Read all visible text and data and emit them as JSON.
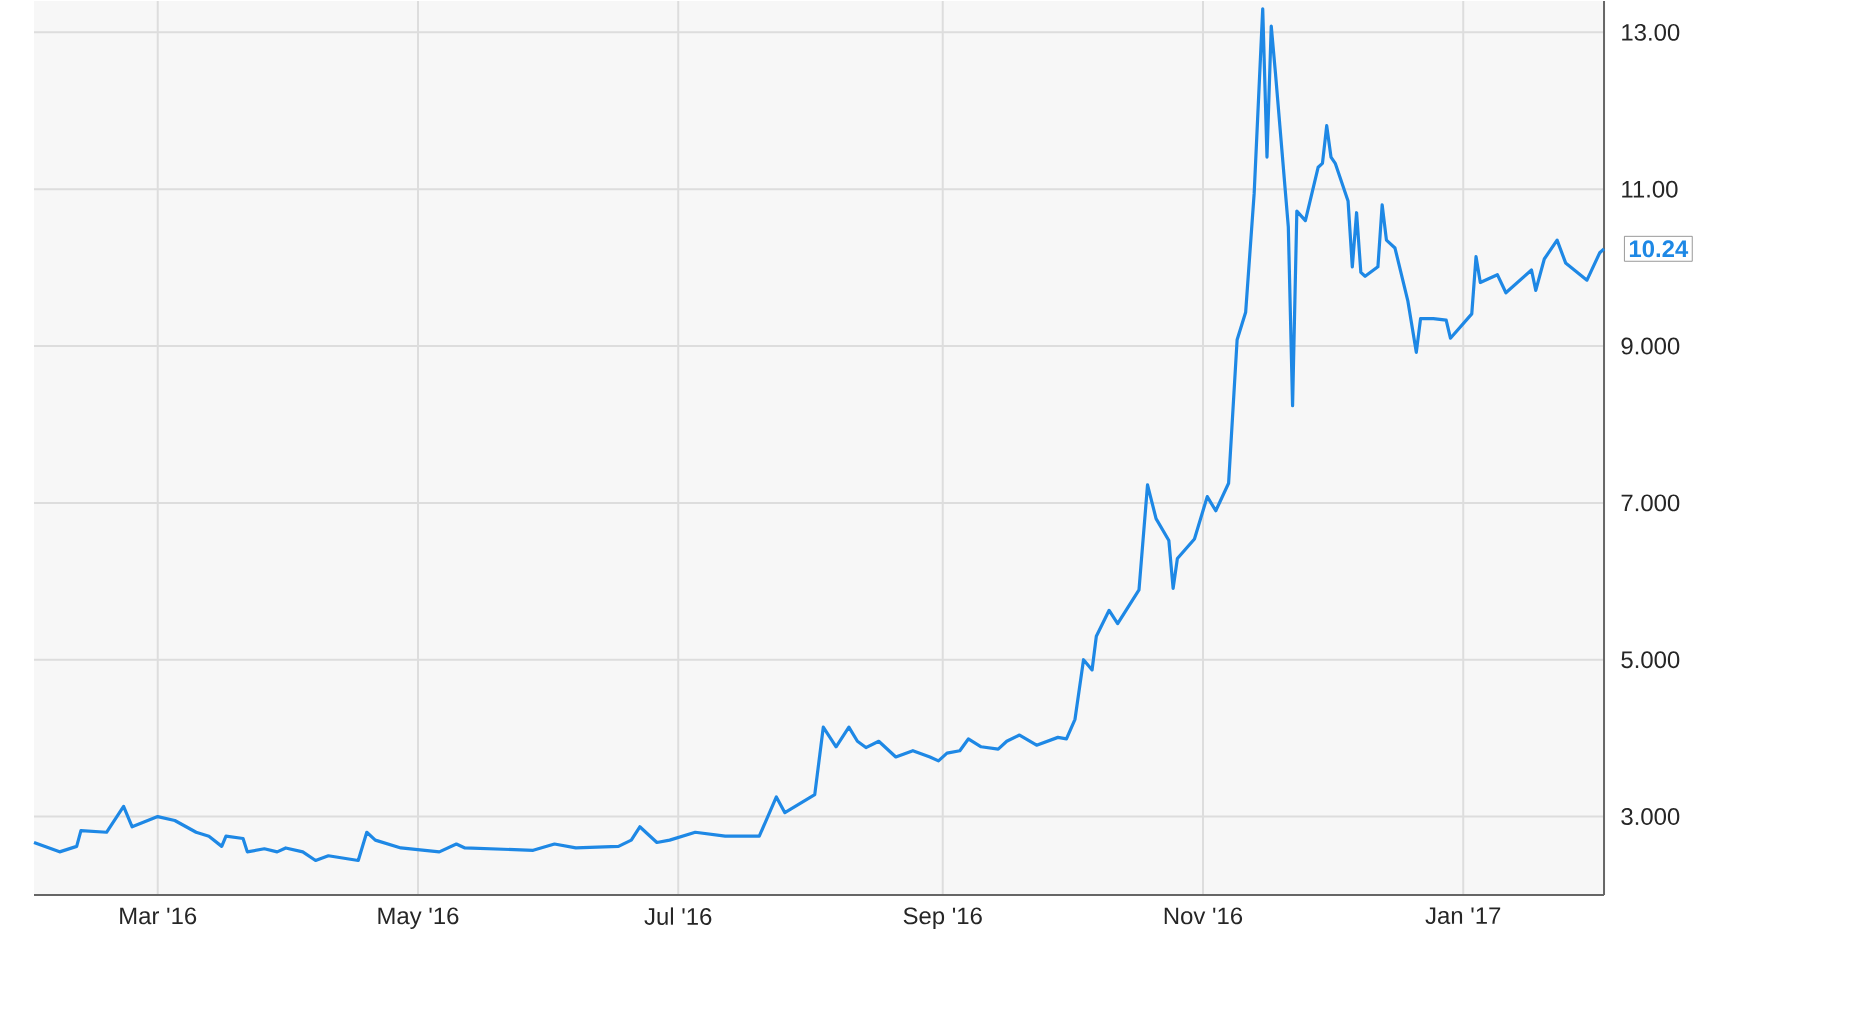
{
  "chart_data": {
    "type": "line",
    "x": [
      "2016-02-01",
      "2016-02-07",
      "2016-02-11",
      "2016-02-12",
      "2016-02-18",
      "2016-02-22",
      "2016-02-24",
      "2016-03-01",
      "2016-03-05",
      "2016-03-10",
      "2016-03-13",
      "2016-03-16",
      "2016-03-17",
      "2016-03-21",
      "2016-03-22",
      "2016-03-26",
      "2016-03-29",
      "2016-03-31",
      "2016-04-04",
      "2016-04-07",
      "2016-04-10",
      "2016-04-17",
      "2016-04-19",
      "2016-04-21",
      "2016-04-27",
      "2016-05-06",
      "2016-05-10",
      "2016-05-12",
      "2016-05-28",
      "2016-06-02",
      "2016-06-07",
      "2016-06-17",
      "2016-06-20",
      "2016-06-22",
      "2016-06-26",
      "2016-06-29",
      "2016-07-05",
      "2016-07-12",
      "2016-07-20",
      "2016-07-24",
      "2016-07-26",
      "2016-08-02",
      "2016-08-04",
      "2016-08-07",
      "2016-08-10",
      "2016-08-12",
      "2016-08-14",
      "2016-08-17",
      "2016-08-21",
      "2016-08-25",
      "2016-08-29",
      "2016-08-31",
      "2016-09-02",
      "2016-09-05",
      "2016-09-07",
      "2016-09-10",
      "2016-09-14",
      "2016-09-16",
      "2016-09-19",
      "2016-09-23",
      "2016-09-28",
      "2016-09-30",
      "2016-10-02",
      "2016-10-04",
      "2016-10-06",
      "2016-10-07",
      "2016-10-10",
      "2016-10-12",
      "2016-10-17",
      "2016-10-19",
      "2016-10-21",
      "2016-10-24",
      "2016-10-25",
      "2016-10-26",
      "2016-10-30",
      "2016-11-02",
      "2016-11-04",
      "2016-11-07",
      "2016-11-09",
      "2016-11-11",
      "2016-11-13",
      "2016-11-15",
      "2016-11-16",
      "2016-11-17",
      "2016-11-18",
      "2016-11-21",
      "2016-11-22",
      "2016-11-23",
      "2016-11-25",
      "2016-11-28",
      "2016-11-29",
      "2016-11-30",
      "2016-12-01",
      "2016-12-02",
      "2016-12-05",
      "2016-12-06",
      "2016-12-07",
      "2016-12-08",
      "2016-12-09",
      "2016-12-12",
      "2016-12-13",
      "2016-12-14",
      "2016-12-16",
      "2016-12-19",
      "2016-12-21",
      "2016-12-22",
      "2016-12-25",
      "2016-12-28",
      "2016-12-29",
      "2017-01-03",
      "2017-01-04",
      "2017-01-05",
      "2017-01-09",
      "2017-01-11",
      "2017-01-17",
      "2017-01-18",
      "2017-01-20",
      "2017-01-23",
      "2017-01-25",
      "2017-01-30",
      "2017-02-02",
      "2017-02-03"
    ],
    "values": [
      2.67,
      2.55,
      2.62,
      2.82,
      2.8,
      3.13,
      2.87,
      3.0,
      2.95,
      2.8,
      2.75,
      2.62,
      2.75,
      2.72,
      2.55,
      2.59,
      2.55,
      2.6,
      2.55,
      2.44,
      2.5,
      2.44,
      2.8,
      2.7,
      2.6,
      2.55,
      2.65,
      2.6,
      2.57,
      2.65,
      2.6,
      2.62,
      2.7,
      2.87,
      2.67,
      2.7,
      2.8,
      2.75,
      2.75,
      3.25,
      3.05,
      3.28,
      4.14,
      3.89,
      4.14,
      3.96,
      3.88,
      3.96,
      3.76,
      3.84,
      3.76,
      3.71,
      3.81,
      3.84,
      3.99,
      3.89,
      3.86,
      3.96,
      4.04,
      3.91,
      4.01,
      3.99,
      4.24,
      5.0,
      4.87,
      5.3,
      5.63,
      5.46,
      5.89,
      7.23,
      6.8,
      6.52,
      5.91,
      6.29,
      6.54,
      7.08,
      6.9,
      7.25,
      9.08,
      9.43,
      10.95,
      13.3,
      11.41,
      13.08,
      12.47,
      10.52,
      8.24,
      10.72,
      10.6,
      11.28,
      11.33,
      11.81,
      11.41,
      11.33,
      10.85,
      10.01,
      10.7,
      9.94,
      9.89,
      10.01,
      10.8,
      10.35,
      10.25,
      9.58,
      8.92,
      9.35,
      9.35,
      9.33,
      9.1,
      9.41,
      10.14,
      9.81,
      9.91,
      9.68,
      9.97,
      9.71,
      10.11,
      10.35,
      10.06,
      9.84,
      10.19,
      10.24
    ],
    "value_labels": [
      null,
      null,
      null,
      null,
      null,
      null,
      null,
      null,
      null,
      null,
      null,
      null,
      null,
      null,
      null,
      null,
      null,
      null,
      null,
      null,
      null,
      null,
      null,
      null,
      null,
      null,
      null,
      null,
      null,
      null,
      null,
      null,
      null,
      null,
      null,
      null,
      null,
      null,
      null,
      null,
      null,
      null,
      null,
      null,
      null,
      null,
      null,
      null,
      null,
      null,
      null,
      null,
      null,
      null,
      null,
      null,
      null,
      null,
      null,
      null,
      null,
      null,
      null,
      null,
      null,
      null,
      null,
      null,
      null,
      null,
      null,
      null,
      null,
      null,
      null,
      null,
      null,
      null,
      null,
      null,
      null,
      null,
      null,
      null,
      null,
      null,
      null,
      null,
      null,
      null,
      null,
      null,
      null,
      null,
      null,
      null,
      null,
      null,
      null,
      null,
      null,
      null,
      null,
      null,
      null,
      null,
      null,
      null,
      null,
      null,
      null,
      null,
      null,
      null,
      null,
      null,
      null,
      null,
      null,
      null,
      null,
      "10.24"
    ],
    "color": "#1e88e5",
    "xlim": [
      "2016-02-01",
      "2017-02-03"
    ],
    "xticks": [
      {
        "value": "2016-03-01",
        "label": "Mar '16"
      },
      {
        "value": "2016-05-01",
        "label": "May '16"
      },
      {
        "value": "2016-07-01",
        "label": "Jul '16"
      },
      {
        "value": "2016-09-01",
        "label": "Sep '16"
      },
      {
        "value": "2016-11-01",
        "label": "Nov '16"
      },
      {
        "value": "2017-01-01",
        "label": "Jan '17"
      }
    ],
    "ylim": [
      2,
      13.4
    ],
    "yticks": [
      {
        "value": 3,
        "label": "3.000"
      },
      {
        "value": 5,
        "label": "5.000"
      },
      {
        "value": 7,
        "label": "7.000"
      },
      {
        "value": 9,
        "label": "9.000"
      },
      {
        "value": 11,
        "label": "11.00"
      },
      {
        "value": 13,
        "label": "13.00"
      }
    ],
    "grid": true,
    "marker": "none",
    "line_style": "solid"
  }
}
